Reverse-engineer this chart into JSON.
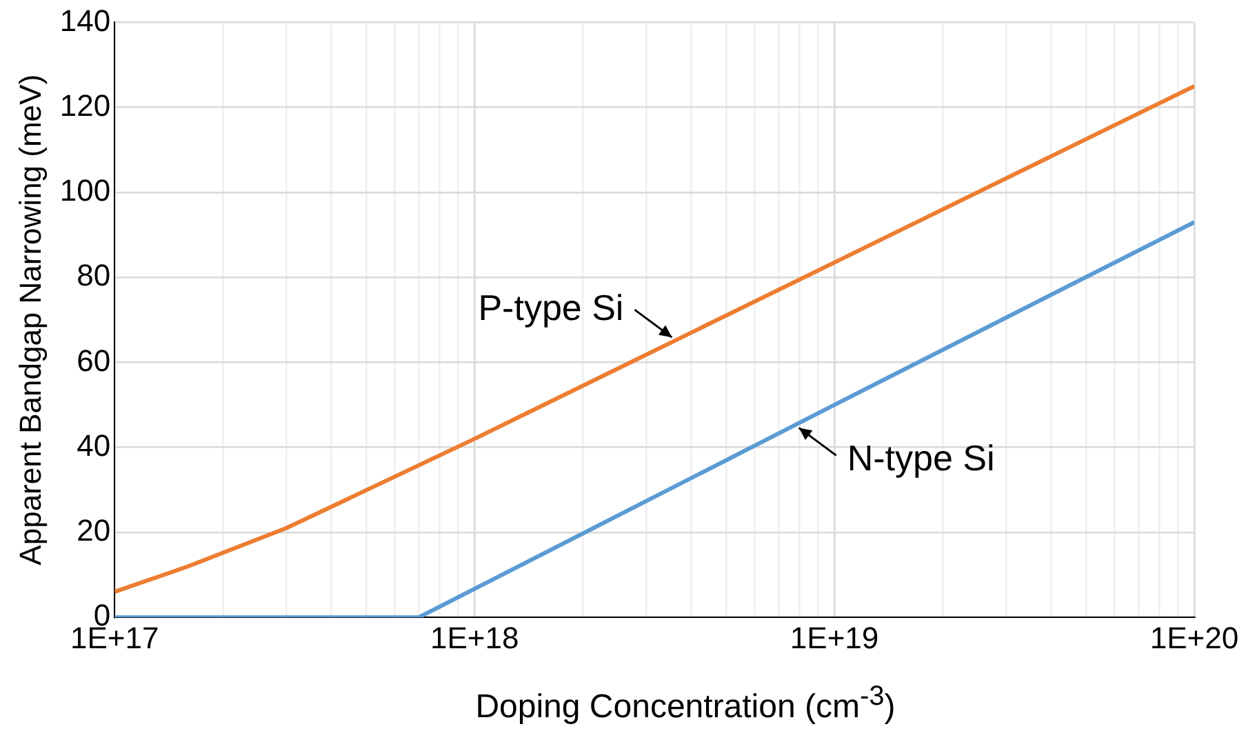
{
  "chart_data": {
    "type": "line",
    "xlabel": "Doping Concentration (cm$^{-3}$)",
    "ylabel": "Apparent Bandgap Narrowing (meV)",
    "log": "x",
    "xlim": [
      1e+17,
      1e+20
    ],
    "xticks": [
      {
        "value": 1e+17,
        "label": "1E+17"
      },
      {
        "value": 2e+17,
        "label": null
      },
      {
        "value": 3e+17,
        "label": null
      },
      {
        "value": 4e+17,
        "label": null
      },
      {
        "value": 5e+17,
        "label": null
      },
      {
        "value": 6e+17,
        "label": null
      },
      {
        "value": 7e+17,
        "label": null
      },
      {
        "value": 8e+17,
        "label": null
      },
      {
        "value": 9e+17,
        "label": null
      },
      {
        "value": 1e+18,
        "label": "1E+18"
      },
      {
        "value": 2e+18,
        "label": null
      },
      {
        "value": 3e+18,
        "label": null
      },
      {
        "value": 4e+18,
        "label": null
      },
      {
        "value": 5e+18,
        "label": null
      },
      {
        "value": 6e+18,
        "label": null
      },
      {
        "value": 7e+18,
        "label": null
      },
      {
        "value": 8e+18,
        "label": null
      },
      {
        "value": 9e+18,
        "label": null
      },
      {
        "value": 1e+19,
        "label": "1E+19"
      },
      {
        "value": 2e+19,
        "label": null
      },
      {
        "value": 3e+19,
        "label": null
      },
      {
        "value": 4e+19,
        "label": null
      },
      {
        "value": 5e+19,
        "label": null
      },
      {
        "value": 6e+19,
        "label": null
      },
      {
        "value": 7e+19,
        "label": null
      },
      {
        "value": 8e+19,
        "label": null
      },
      {
        "value": 9e+19,
        "label": null
      },
      {
        "value": 1e+20,
        "label": "1E+20"
      }
    ],
    "ylim": [
      0,
      140
    ],
    "yticks": [
      0,
      20,
      40,
      60,
      80,
      100,
      120,
      140
    ],
    "grid": true,
    "legend": false,
    "marker": "none",
    "line_style": "solid",
    "series": [
      {
        "name": "P-type Si",
        "color": "#ed7d31",
        "x": [
          1e+17,
          1.6e+17,
          3e+17,
          1e+18,
          1e+19,
          1e+20
        ],
        "values": [
          6,
          12,
          21,
          42,
          83.5,
          125
        ]
      },
      {
        "name": "N-type Si",
        "color": "#5b9bd5",
        "x": [
          1e+17,
          7e+17,
          1e+19,
          1e+20
        ],
        "values": [
          0,
          0,
          50,
          93
        ]
      }
    ]
  }
}
